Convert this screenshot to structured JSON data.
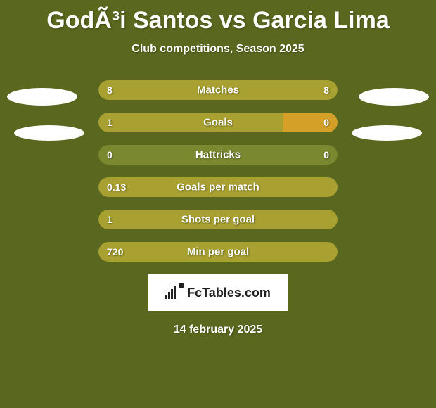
{
  "title": "GodÃ³i Santos vs Garcia Lima",
  "subtitle": "Club competitions, Season 2025",
  "date": "14 february 2025",
  "fctables_text": "FcTables.com",
  "colors": {
    "background": "#5a671e",
    "bar_left": "#a8a030",
    "bar_right": "#a8a030",
    "bar_neutral": "#7a8830",
    "bar_highlight": "#d4a028"
  },
  "stats": [
    {
      "label": "Matches",
      "left_value": "8",
      "right_value": "8",
      "left_width": 50,
      "right_width": 50,
      "left_color": "#a8a030",
      "right_color": "#a8a030"
    },
    {
      "label": "Goals",
      "left_value": "1",
      "right_value": "0",
      "left_width": 77,
      "right_width": 23,
      "left_color": "#a8a030",
      "right_color": "#d4a028"
    },
    {
      "label": "Hattricks",
      "left_value": "0",
      "right_value": "0",
      "left_width": 100,
      "right_width": 0,
      "left_color": "#7a8830",
      "right_color": "#7a8830"
    },
    {
      "label": "Goals per match",
      "left_value": "0.13",
      "right_value": "",
      "left_width": 100,
      "right_width": 0,
      "left_color": "#a8a030",
      "right_color": "#a8a030"
    },
    {
      "label": "Shots per goal",
      "left_value": "1",
      "right_value": "",
      "left_width": 100,
      "right_width": 0,
      "left_color": "#a8a030",
      "right_color": "#a8a030"
    },
    {
      "label": "Min per goal",
      "left_value": "720",
      "right_value": "",
      "left_width": 100,
      "right_width": 0,
      "left_color": "#a8a030",
      "right_color": "#a8a030"
    }
  ]
}
